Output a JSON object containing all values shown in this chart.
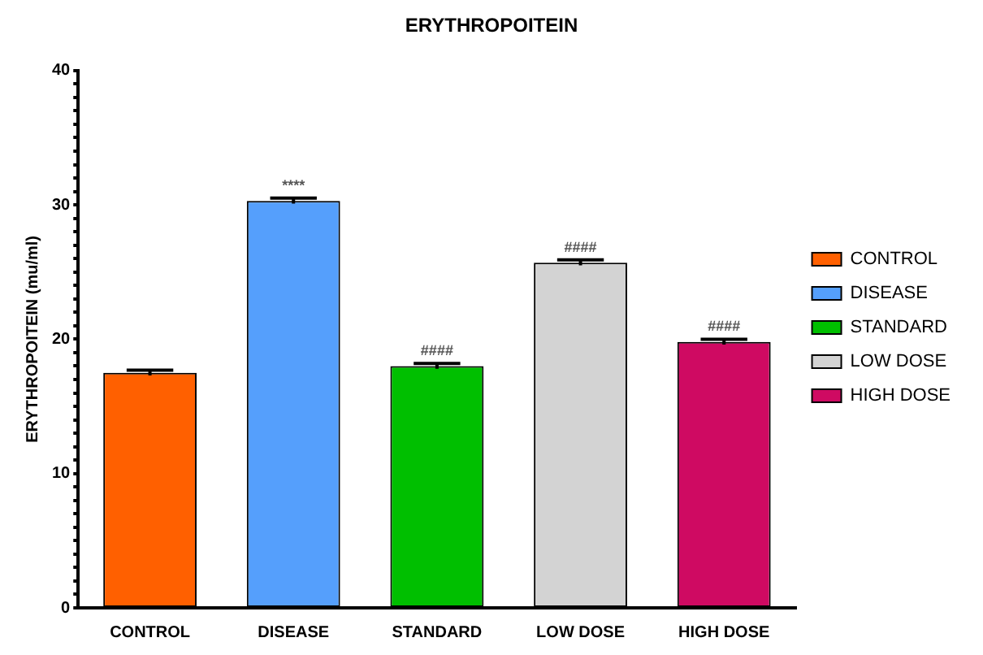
{
  "chart_data": {
    "type": "bar",
    "title": "ERYTHROPOITEIN",
    "ylabel": "ERYTHROPOITEIN (mu/ml)",
    "categories": [
      "CONTROL",
      "DISEASE",
      "STANDARD",
      "LOW DOSE",
      "HIGH DOSE"
    ],
    "series": [
      {
        "name": "CONTROL",
        "color": "#ff6000",
        "values": [
          17.5,
          null,
          null,
          null,
          null
        ],
        "errors": [
          0.2,
          null,
          null,
          null,
          null
        ]
      },
      {
        "name": "DISEASE",
        "color": "#559ffc",
        "values": [
          null,
          30.3,
          null,
          null,
          null
        ],
        "errors": [
          null,
          0.2,
          null,
          null,
          null
        ]
      },
      {
        "name": "STANDARD",
        "color": "#00bf00",
        "values": [
          null,
          null,
          18.0,
          null,
          null
        ],
        "errors": [
          null,
          null,
          0.2,
          null,
          null
        ]
      },
      {
        "name": "LOW DOSE",
        "color": "#d3d3d3",
        "values": [
          null,
          null,
          null,
          25.7,
          null
        ],
        "errors": [
          null,
          null,
          null,
          0.2,
          null
        ]
      },
      {
        "name": "HIGH DOSE",
        "color": "#cf0a62",
        "values": [
          null,
          null,
          null,
          null,
          19.8
        ],
        "errors": [
          null,
          null,
          null,
          null,
          0.2
        ]
      }
    ],
    "ylim": [
      0,
      40
    ],
    "yticks": [
      0,
      {
        "value": 1,
        "label": null
      },
      {
        "value": 2,
        "label": null
      },
      {
        "value": 3,
        "label": null
      },
      {
        "value": 4,
        "label": null
      },
      {
        "value": 5,
        "label": null
      },
      {
        "value": 6,
        "label": null
      },
      {
        "value": 7,
        "label": null
      },
      {
        "value": 8,
        "label": null
      },
      {
        "value": 9,
        "label": null
      },
      10,
      {
        "value": 11,
        "label": null
      },
      {
        "value": 12,
        "label": null
      },
      {
        "value": 13,
        "label": null
      },
      {
        "value": 14,
        "label": null
      },
      {
        "value": 15,
        "label": null
      },
      {
        "value": 16,
        "label": null
      },
      {
        "value": 17,
        "label": null
      },
      {
        "value": 18,
        "label": null
      },
      {
        "value": 19,
        "label": null
      },
      20,
      {
        "value": 21,
        "label": null
      },
      {
        "value": 22,
        "label": null
      },
      {
        "value": 23,
        "label": null
      },
      {
        "value": 24,
        "label": null
      },
      {
        "value": 25,
        "label": null
      },
      {
        "value": 26,
        "label": null
      },
      {
        "value": 27,
        "label": null
      },
      {
        "value": 28,
        "label": null
      },
      {
        "value": 29,
        "label": null
      },
      30,
      {
        "value": 31,
        "label": null
      },
      {
        "value": 32,
        "label": null
      },
      {
        "value": 33,
        "label": null
      },
      {
        "value": 34,
        "label": null
      },
      {
        "value": 35,
        "label": null
      },
      {
        "value": 36,
        "label": null
      },
      {
        "value": 37,
        "label": null
      },
      {
        "value": 38,
        "label": null
      },
      {
        "value": 39,
        "label": null
      },
      40
    ],
    "annotations": [
      {
        "text": "****",
        "x": "DISEASE",
        "y": 30.5
      },
      {
        "text": "####",
        "x": "STANDARD",
        "y": 18.2
      },
      {
        "text": "####",
        "x": "LOW DOSE",
        "y": 25.9
      },
      {
        "text": "####",
        "x": "HIGH DOSE",
        "y": 20.0
      }
    ],
    "grid": false,
    "legend": "right"
  }
}
